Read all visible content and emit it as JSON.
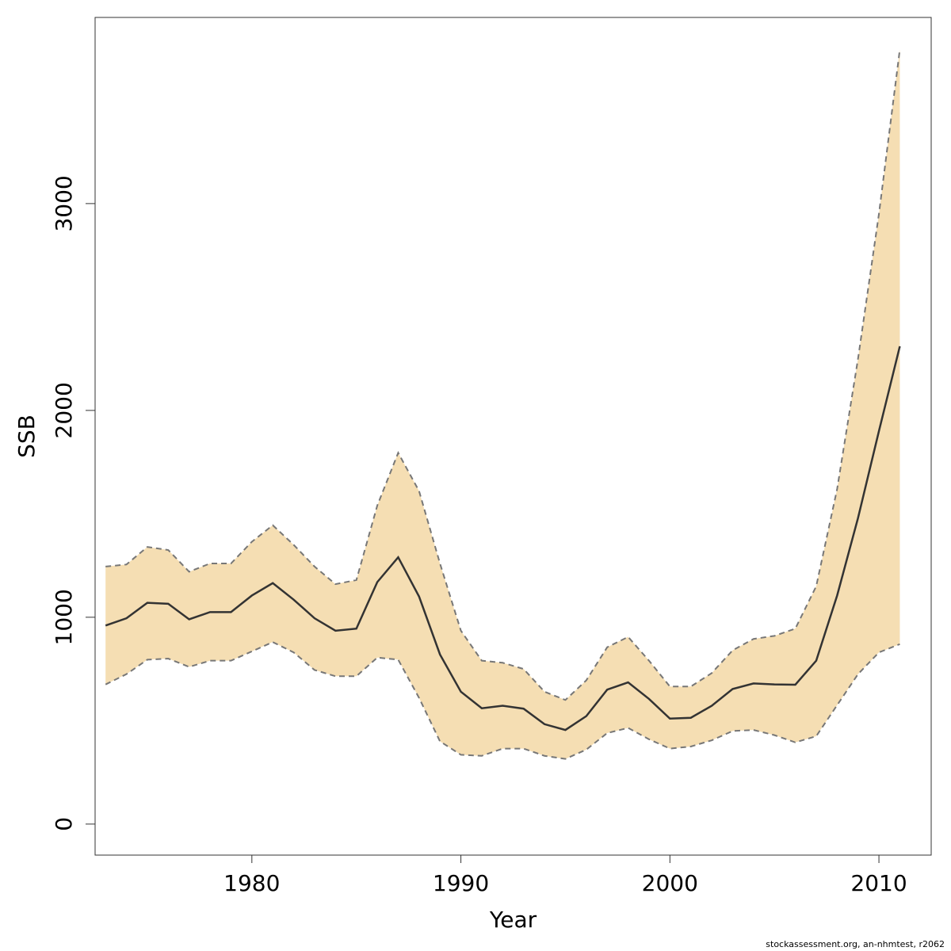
{
  "chart_data": {
    "type": "area",
    "xlabel": "Year",
    "ylabel": "SSB",
    "xlim": [
      1972.5,
      2012.5
    ],
    "ylim": [
      -150,
      3900
    ],
    "x_ticks": [
      1980,
      1990,
      2000,
      2010
    ],
    "y_ticks": [
      0,
      1000,
      2000,
      3000
    ],
    "grid": false,
    "colors": {
      "band": "#f5deb3",
      "line": "#333333",
      "bound": "#777777"
    },
    "x": [
      1973,
      1974,
      1975,
      1976,
      1977,
      1978,
      1979,
      1980,
      1981,
      1982,
      1983,
      1984,
      1985,
      1986,
      1987,
      1988,
      1989,
      1990,
      1991,
      1992,
      1993,
      1994,
      1995,
      1996,
      1997,
      1998,
      1999,
      2000,
      2001,
      2002,
      2003,
      2004,
      2005,
      2006,
      2007,
      2008,
      2009,
      2010,
      2011
    ],
    "series": [
      {
        "role": "estimate",
        "values": [
          960,
          995,
          1070,
          1065,
          990,
          1025,
          1025,
          1105,
          1165,
          1085,
          995,
          935,
          945,
          1170,
          1290,
          1100,
          820,
          640,
          560,
          572,
          558,
          483,
          455,
          522,
          650,
          685,
          605,
          510,
          514,
          572,
          653,
          680,
          675,
          674,
          790,
          1105,
          1480,
          1900,
          2310
        ]
      },
      {
        "role": "upper",
        "values": [
          1245,
          1255,
          1340,
          1325,
          1220,
          1260,
          1260,
          1365,
          1445,
          1350,
          1245,
          1160,
          1180,
          1540,
          1795,
          1610,
          1260,
          935,
          790,
          780,
          750,
          640,
          600,
          695,
          855,
          905,
          790,
          665,
          665,
          730,
          840,
          895,
          910,
          945,
          1150,
          1620,
          2250,
          2950,
          3745
        ]
      },
      {
        "role": "lower",
        "values": [
          675,
          725,
          795,
          800,
          760,
          790,
          790,
          835,
          880,
          830,
          745,
          715,
          715,
          805,
          795,
          610,
          400,
          335,
          330,
          365,
          365,
          330,
          315,
          360,
          440,
          465,
          410,
          365,
          375,
          405,
          450,
          455,
          430,
          395,
          425,
          575,
          725,
          830,
          870
        ]
      }
    ]
  },
  "footer": {
    "text": "stockassessment.org, an-nhmtest, r2062"
  }
}
